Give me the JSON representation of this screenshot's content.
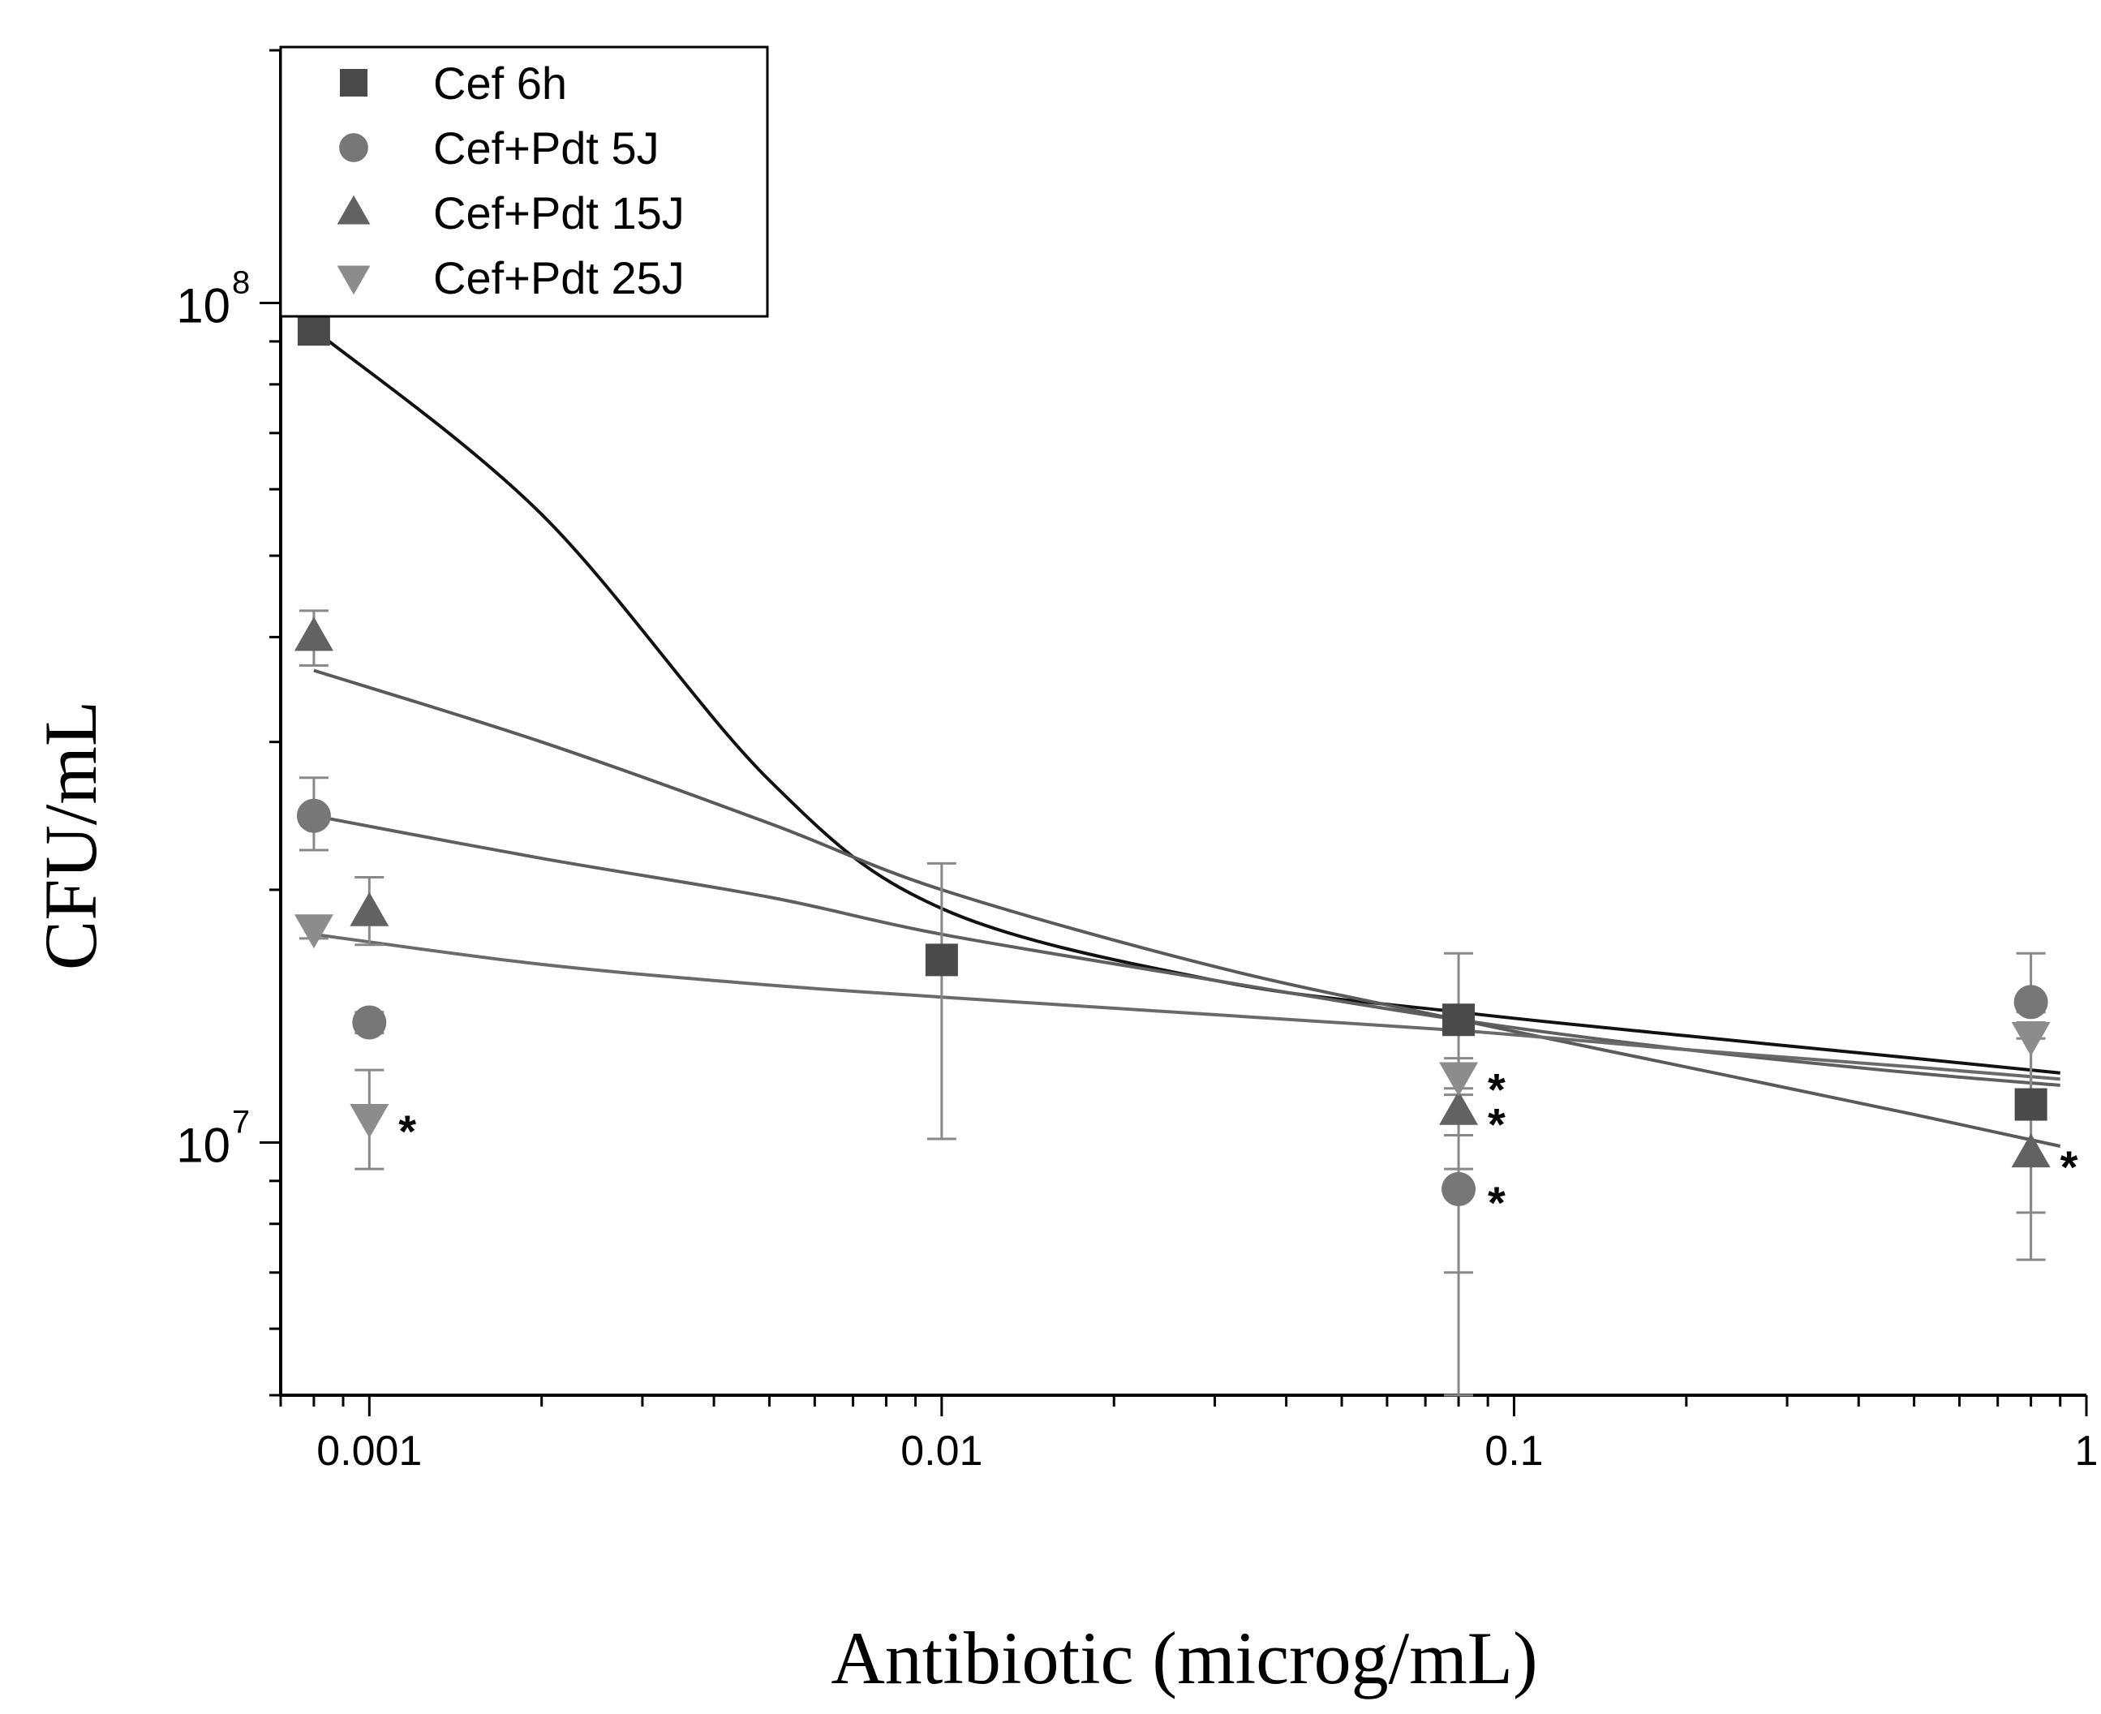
{
  "chart_data": {
    "type": "scatter",
    "title": "",
    "xlabel": "Antibiotic (microg/mL)",
    "ylabel": "CFU/mL",
    "xscale": "log",
    "yscale": "log",
    "xlim": [
      0.0007,
      1
    ],
    "ylim": [
      5000000,
      200000000
    ],
    "x_ticks": [
      {
        "value": 0.001,
        "label": "0.001"
      },
      {
        "value": 0.01,
        "label": "0.01"
      },
      {
        "value": 0.1,
        "label": "0.1"
      },
      {
        "value": 1,
        "label": "1"
      }
    ],
    "y_ticks": [
      {
        "value": 10000000,
        "base": "10",
        "exp": "7"
      },
      {
        "value": 100000000,
        "base": "10",
        "exp": "8"
      }
    ],
    "legend_position": "top-left",
    "series": [
      {
        "name": "Cef 6h",
        "marker": "square",
        "color": "#4a4a4a",
        "fit_color": "#111111",
        "points": [
          {
            "x": 0.0008,
            "y": 93000000
          },
          {
            "x": 0.01,
            "y": 16500000,
            "err_lo": 10100000,
            "err_hi": 21500000
          },
          {
            "x": 0.08,
            "y": 14000000,
            "err_lo": 7000000,
            "err_hi": 16800000
          },
          {
            "x": 0.8,
            "y": 11100000
          }
        ],
        "fit": [
          [
            0.0008,
            93000000
          ],
          [
            0.002,
            56000000
          ],
          [
            0.005,
            27000000
          ],
          [
            0.01,
            19000000
          ],
          [
            0.03,
            15600000
          ],
          [
            0.08,
            14300000
          ],
          [
            0.2,
            13400000
          ],
          [
            0.5,
            12600000
          ],
          [
            0.9,
            12100000
          ]
        ]
      },
      {
        "name": "Cef+Pdt 5J",
        "marker": "circle",
        "color": "#777777",
        "fit_color": "#5f5f5f",
        "points": [
          {
            "x": 0.0008,
            "y": 24500000,
            "err_lo": 22300000,
            "err_hi": 27200000
          },
          {
            "x": 0.001,
            "y": 13900000,
            "err_lo": 13500000,
            "err_hi": 14300000
          },
          {
            "x": 0.08,
            "y": 8800000,
            "err_lo": 5000000,
            "err_hi": 9300000,
            "star": true
          },
          {
            "x": 0.8,
            "y": 14700000,
            "err_lo": 14300000,
            "err_hi": 16800000
          }
        ],
        "fit": [
          [
            0.0008,
            24500000
          ],
          [
            0.002,
            21800000
          ],
          [
            0.005,
            19600000
          ],
          [
            0.01,
            17700000
          ],
          [
            0.03,
            15600000
          ],
          [
            0.08,
            14000000
          ],
          [
            0.2,
            12900000
          ],
          [
            0.5,
            12100000
          ],
          [
            0.9,
            11700000
          ]
        ]
      },
      {
        "name": "Cef+Pdt 15J",
        "marker": "triangle-up",
        "color": "#626262",
        "fit_color": "#5a5a5a",
        "points": [
          {
            "x": 0.0008,
            "y": 40000000,
            "err_lo": 37000000,
            "err_hi": 43000000
          },
          {
            "x": 0.001,
            "y": 18800000,
            "err_lo": 17200000,
            "err_hi": 20700000
          },
          {
            "x": 0.08,
            "y": 10900000,
            "err_lo": 10200000,
            "err_hi": 11600000,
            "star": true
          },
          {
            "x": 0.8,
            "y": 9700000,
            "err_lo": 7250000,
            "err_hi": 13300000,
            "star": true
          }
        ],
        "fit": [
          [
            0.0008,
            36500000
          ],
          [
            0.002,
            30000000
          ],
          [
            0.005,
            24000000
          ],
          [
            0.01,
            20000000
          ],
          [
            0.03,
            16200000
          ],
          [
            0.08,
            14000000
          ],
          [
            0.2,
            12300000
          ],
          [
            0.5,
            10800000
          ],
          [
            0.9,
            9900000
          ]
        ]
      },
      {
        "name": "Cef+Pdt 25J",
        "marker": "triangle-down",
        "color": "#8c8c8c",
        "fit_color": "#6a6a6a",
        "points": [
          {
            "x": 0.0008,
            "y": 18000000,
            "err_lo": 17500000,
            "err_hi": 18400000
          },
          {
            "x": 0.001,
            "y": 10700000,
            "err_lo": 9300000,
            "err_hi": 12200000,
            "star": true
          },
          {
            "x": 0.08,
            "y": 12000000,
            "err_lo": 11400000,
            "err_hi": 12600000,
            "star": true
          },
          {
            "x": 0.8,
            "y": 13400000,
            "err_lo": 8250000,
            "err_hi": 13900000
          }
        ],
        "fit": [
          [
            0.0008,
            17700000
          ],
          [
            0.002,
            16300000
          ],
          [
            0.005,
            15400000
          ],
          [
            0.01,
            14900000
          ],
          [
            0.03,
            14200000
          ],
          [
            0.08,
            13600000
          ],
          [
            0.2,
            12900000
          ],
          [
            0.5,
            12300000
          ],
          [
            0.9,
            11900000
          ]
        ]
      }
    ]
  }
}
